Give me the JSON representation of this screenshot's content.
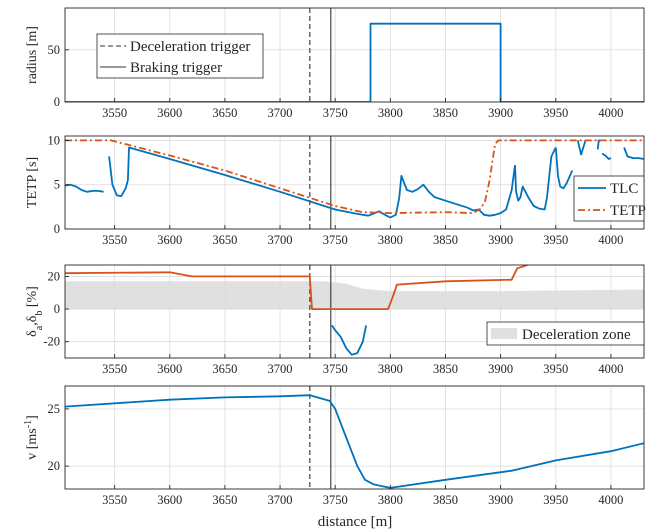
{
  "figure": {
    "xlabel": "distance [m]"
  },
  "chart_data": [
    {
      "type": "line",
      "ylabel": "radius [m]",
      "xlim": [
        3505,
        4030
      ],
      "ylim": [
        0,
        90
      ],
      "xticks": [
        3550,
        3600,
        3650,
        3700,
        3750,
        3800,
        3850,
        3900,
        3950,
        4000
      ],
      "yticks": [
        0,
        50
      ],
      "grid": true,
      "legend": {
        "position": "top-left",
        "entries": [
          "Deceleration trigger",
          "Braking trigger"
        ]
      },
      "series": [
        {
          "key": "radius",
          "color": "#0072BD",
          "style": "solid",
          "x": [
            3505,
            3782,
            3782,
            3900,
            3900,
            4030
          ],
          "y": [
            0,
            0,
            75,
            75,
            0,
            0
          ]
        }
      ]
    },
    {
      "type": "line",
      "ylabel": "TETP [s]",
      "xlim": [
        3505,
        4030
      ],
      "ylim": [
        0,
        10.5
      ],
      "xticks": [
        3550,
        3600,
        3650,
        3700,
        3750,
        3800,
        3850,
        3900,
        3950,
        4000
      ],
      "yticks": [
        0,
        5,
        10
      ],
      "grid": true,
      "legend": {
        "position": "right",
        "entries": [
          "TLC",
          "TETP"
        ]
      },
      "series": [
        {
          "name": "TLC",
          "color": "#0072BD",
          "style": "solid",
          "segments": [
            {
              "x": [
                3505,
                3510,
                3515,
                3520,
                3525,
                3530,
                3535,
                3540
              ],
              "y": [
                4.9,
                5.0,
                4.8,
                4.4,
                4.2,
                4.3,
                4.3,
                4.2
              ]
            },
            {
              "x": [
                3545,
                3548,
                3552,
                3556,
                3560,
                3562
              ],
              "y": [
                8.2,
                5.0,
                3.8,
                3.7,
                4.6,
                5.5
              ]
            },
            {
              "x": [
                3562,
                3563,
                3600,
                3650,
                3700,
                3750,
                3770,
                3780,
                3790,
                3795,
                3800,
                3805,
                3808,
                3810,
                3815,
                3820,
                3825,
                3830,
                3835,
                3840,
                3850,
                3860,
                3870,
                3875,
                3880,
                3885,
                3890,
                3895,
                3900,
                3905,
                3910,
                3913
              ],
              "y": [
                5.5,
                9.2,
                7.9,
                6.1,
                4.2,
                2.2,
                1.7,
                1.5,
                2.0,
                1.6,
                1.3,
                1.6,
                3.5,
                6.0,
                4.4,
                4.2,
                4.5,
                5.0,
                4.2,
                3.6,
                3.2,
                2.8,
                2.4,
                2.1,
                2.2,
                1.6,
                1.5,
                1.6,
                1.8,
                2.2,
                4.4,
                7.2
              ]
            },
            {
              "x": [
                3913,
                3914,
                3916,
                3918,
                3920,
                3925,
                3930,
                3935,
                3940,
                3942,
                3946,
                3950
              ],
              "y": [
                7.2,
                4.2,
                3.2,
                3.6,
                4.8,
                3.6,
                2.6,
                2.3,
                2.2,
                3.5,
                8.2,
                9.2
              ]
            },
            {
              "x": [
                3950,
                3952,
                3954,
                3957,
                3960,
                3965
              ],
              "y": [
                9.2,
                6.0,
                4.8,
                4.6,
                5.2,
                6.6
              ]
            },
            {
              "x": [
                3970,
                3973,
                3977
              ],
              "y": [
                10.0,
                8.4,
                10.0
              ]
            },
            {
              "x": [
                3992,
                3995,
                3998,
                4000
              ],
              "y": [
                8.5,
                8.3,
                7.9,
                8.0
              ]
            },
            {
              "x": [
                3988,
                3989,
                3991
              ],
              "y": [
                9.0,
                10.0,
                10.0
              ]
            },
            {
              "x": [
                4012,
                4015,
                4020,
                4025,
                4030
              ],
              "y": [
                9.2,
                8.2,
                8.0,
                8.0,
                7.9
              ]
            }
          ]
        },
        {
          "name": "TETP",
          "color": "#D95319",
          "style": "dashdot",
          "segments": [
            {
              "x": [
                3505,
                3547,
                3600,
                3650,
                3700,
                3750,
                3775,
                3800,
                3850,
                3875,
                3882,
                3886,
                3890,
                3893,
                3895,
                3898,
                3905,
                3950,
                4030
              ],
              "y": [
                10.0,
                10.0,
                8.3,
                6.6,
                4.6,
                2.6,
                1.9,
                1.8,
                1.9,
                1.8,
                2.3,
                3.2,
                5.5,
                8.0,
                9.6,
                10.0,
                10.0,
                10.0,
                10.0
              ]
            }
          ]
        }
      ]
    },
    {
      "type": "area",
      "ylabel": "δa,δb [%]",
      "xlim": [
        3505,
        4030
      ],
      "ylim": [
        -30,
        27
      ],
      "xticks": [
        3550,
        3600,
        3650,
        3700,
        3750,
        3800,
        3850,
        3900,
        3950,
        4000
      ],
      "yticks": [
        -20,
        0,
        20
      ],
      "grid": true,
      "legend": {
        "position": "bottom-right",
        "entries": [
          "Deceleration zone"
        ]
      },
      "zone": {
        "name": "Deceleration zone",
        "color": "#e0e0e0",
        "x": [
          3505,
          3740,
          3760,
          3775,
          3800,
          3900,
          4030
        ],
        "upper": [
          17,
          17,
          15.5,
          12.5,
          11,
          11,
          12
        ],
        "lower": [
          0,
          0,
          0,
          0,
          0,
          0,
          0
        ]
      },
      "series": [
        {
          "key": "delta_a",
          "color": "#D95319",
          "style": "solid",
          "x": [
            3505,
            3600,
            3620,
            3700,
            3727,
            3729,
            3745,
            3790,
            3798,
            3802,
            3806,
            3850,
            3910,
            3915,
            3920,
            3940,
            4030
          ],
          "y": [
            22,
            22.5,
            20,
            20,
            20,
            0,
            0,
            0,
            0,
            7,
            15,
            17,
            18,
            25,
            26,
            31,
            31
          ]
        },
        {
          "key": "delta_b",
          "color": "#0072BD",
          "style": "solid",
          "x": [
            3747,
            3750,
            3755,
            3760,
            3765,
            3770,
            3775,
            3778
          ],
          "y": [
            -10,
            -13,
            -17,
            -24,
            -28,
            -27,
            -20,
            -10
          ]
        }
      ]
    },
    {
      "type": "line",
      "ylabel": "v [ms-1]",
      "xlim": [
        3505,
        4030
      ],
      "ylim": [
        18,
        27
      ],
      "xticks": [
        3550,
        3600,
        3650,
        3700,
        3750,
        3800,
        3850,
        3900,
        3950,
        4000
      ],
      "yticks": [
        20,
        25
      ],
      "grid": true,
      "series": [
        {
          "key": "v",
          "color": "#0072BD",
          "style": "solid",
          "x": [
            3505,
            3600,
            3650,
            3700,
            3727,
            3745,
            3750,
            3760,
            3770,
            3777,
            3785,
            3800,
            3850,
            3910,
            3950,
            4000,
            4030
          ],
          "y": [
            25.2,
            25.8,
            26.0,
            26.1,
            26.2,
            25.7,
            25.0,
            22.5,
            20.0,
            18.8,
            18.4,
            18.1,
            18.8,
            19.6,
            20.5,
            21.3,
            22.0
          ]
        }
      ]
    }
  ],
  "triggers": {
    "deceleration_x": 3727,
    "braking_x": 3746
  }
}
